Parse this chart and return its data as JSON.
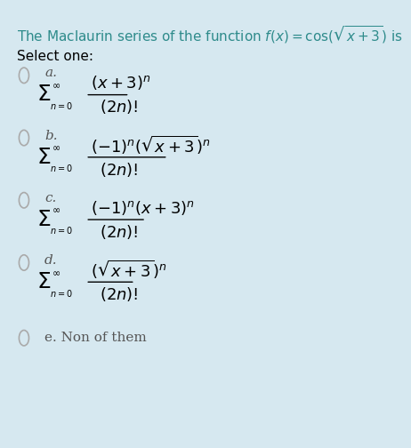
{
  "background_color": "#d6e8f0",
  "title_text": "The Maclaurin series of the function $f(x) = \\cos(\\sqrt{x+3})$ is",
  "title_color": "#2e8b8b",
  "select_text": "Select one:",
  "select_color": "#000000",
  "options": [
    {
      "label": "a.",
      "formula_num": "$(x + 3)^{n}$",
      "formula_den": "$(2n)!$",
      "has_sqrt": false,
      "has_neg1": false
    },
    {
      "label": "b.",
      "formula_num": "$(-1)^{n}(\\sqrt{x+3})^{n}$",
      "formula_den": "$(2n)!$",
      "has_sqrt": true,
      "has_neg1": true
    },
    {
      "label": "c.",
      "formula_num": "$(-1)^{n}(x + 3)^{n}$",
      "formula_den": "$(2n)!$",
      "has_sqrt": false,
      "has_neg1": true
    },
    {
      "label": "d.",
      "formula_num": "$(\\sqrt{x+3})^{n}$",
      "formula_den": "$(2n)!$",
      "has_sqrt": true,
      "has_neg1": false
    },
    {
      "label": "e. Non of them",
      "formula_num": null,
      "formula_den": null,
      "has_sqrt": false,
      "has_neg1": false
    }
  ],
  "circle_color": "#aaaaaa",
  "formula_color": "#000000",
  "label_color": "#555555",
  "font_size_title": 11,
  "font_size_label": 11,
  "font_size_formula": 13
}
